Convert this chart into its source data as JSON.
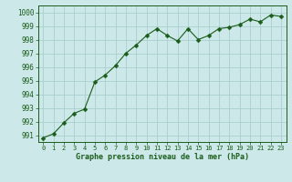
{
  "x": [
    0,
    1,
    2,
    3,
    4,
    5,
    6,
    7,
    8,
    9,
    10,
    11,
    12,
    13,
    14,
    15,
    16,
    17,
    18,
    19,
    20,
    21,
    22,
    23
  ],
  "y": [
    990.8,
    991.1,
    991.9,
    992.6,
    992.9,
    994.9,
    995.4,
    996.1,
    997.0,
    997.6,
    998.3,
    998.8,
    998.3,
    997.9,
    998.8,
    998.0,
    998.3,
    998.8,
    998.9,
    999.1,
    999.5,
    999.3,
    999.8,
    999.7
  ],
  "line_color": "#1a5c1a",
  "marker": "D",
  "marker_size": 2.5,
  "bg_color": "#cce8e8",
  "grid_color": "#aacece",
  "xlabel": "Graphe pression niveau de la mer (hPa)",
  "tick_color": "#1a5c1a",
  "ylim": [
    990.5,
    1000.5
  ],
  "yticks": [
    991,
    992,
    993,
    994,
    995,
    996,
    997,
    998,
    999,
    1000
  ],
  "xlim": [
    -0.5,
    23.5
  ],
  "xticks": [
    0,
    1,
    2,
    3,
    4,
    5,
    6,
    7,
    8,
    9,
    10,
    11,
    12,
    13,
    14,
    15,
    16,
    17,
    18,
    19,
    20,
    21,
    22,
    23
  ]
}
